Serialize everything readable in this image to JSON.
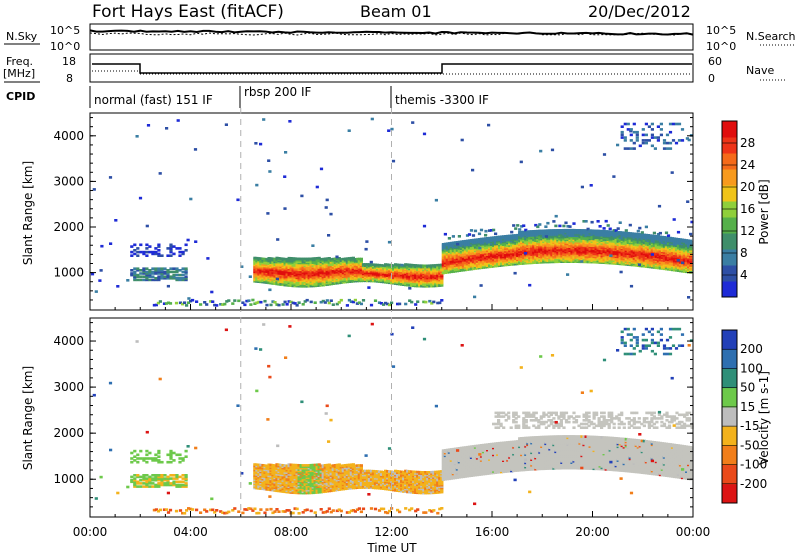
{
  "header": {
    "station": "Fort Hays East (fitACF)",
    "beam": "Beam 01",
    "date": "20/Dec/2012"
  },
  "noise_panel": {
    "left_label": "N.Sky",
    "left_ticks": [
      "10^5",
      "10^0"
    ],
    "right_label": "N.Search",
    "right_ticks": [
      "10^5",
      "10^0"
    ]
  },
  "freq_panel": {
    "left_label": "Freq.",
    "left_unit": "[MHz]",
    "left_ticks": [
      "18",
      "8"
    ],
    "right_label": "Nave",
    "right_ticks": [
      "60",
      "0"
    ],
    "cpid_label": "CPID",
    "modes": [
      {
        "label": "normal (fast) 151 IF",
        "start_h": 0.0
      },
      {
        "label": "rbsp 200 IF",
        "start_h": 6.0
      },
      {
        "label": "themis -3300 IF",
        "start_h": 12.0
      }
    ]
  },
  "power_panel": {
    "ylabel": "Slant Range [km]",
    "yticks": [
      "1000",
      "2000",
      "3000",
      "4000"
    ],
    "colorbar_label": "Power [dB]",
    "colorbar_ticks": [
      "4",
      "8",
      "12",
      "16",
      "20",
      "24",
      "28"
    ],
    "colors": [
      "#1e2bd6",
      "#2d4fa5",
      "#3a7ea3",
      "#3f8e6a",
      "#55b04a",
      "#8fcf3b",
      "#f0c419",
      "#f79a1e",
      "#f56a1a",
      "#ee3318",
      "#e00d0d"
    ]
  },
  "velocity_panel": {
    "ylabel": "Slant Range [km]",
    "yticks": [
      "1000",
      "2000",
      "3000",
      "4000"
    ],
    "colorbar_label": "Velocity [m s-1]",
    "colorbar_ticks": [
      "200",
      "100",
      "50",
      "15",
      "-15",
      "-50",
      "-100",
      "-200"
    ],
    "colors": [
      "#2240b8",
      "#2e6fb0",
      "#2f8f78",
      "#6dc94a",
      "#bdbdbd",
      "#f3b21c",
      "#f17e1a",
      "#ea4a1a",
      "#dc1414"
    ],
    "ground_scatter_color": "#c4c4be"
  },
  "x_axis": {
    "label": "Time UT",
    "ticks": [
      "00:00",
      "04:00",
      "08:00",
      "12:00",
      "16:00",
      "20:00",
      "00:00"
    ]
  },
  "chart_data": {
    "type": "heatmap",
    "x_range_hours": [
      0,
      24
    ],
    "y_range_km": [
      180,
      4500
    ],
    "mode_boundaries_h": [
      6.0,
      12.0
    ],
    "power_features": [
      {
        "t0": 6.5,
        "t1": 14.0,
        "r0": 700,
        "r1": 1350,
        "dB": 20
      },
      {
        "t0": 14.0,
        "t1": 24.0,
        "r0": 950,
        "r1": 1900,
        "dB": 22
      },
      {
        "t0": 1.5,
        "t1": 3.8,
        "r0": 800,
        "r1": 1600,
        "dB": 6
      }
    ],
    "velocity_features": [
      {
        "t0": 6.5,
        "t1": 14.0,
        "r0": 750,
        "r1": 1350,
        "v": -40
      },
      {
        "t0": 14.0,
        "t1": 24.0,
        "r0": 950,
        "r1": 2300,
        "v": 0
      }
    ]
  }
}
